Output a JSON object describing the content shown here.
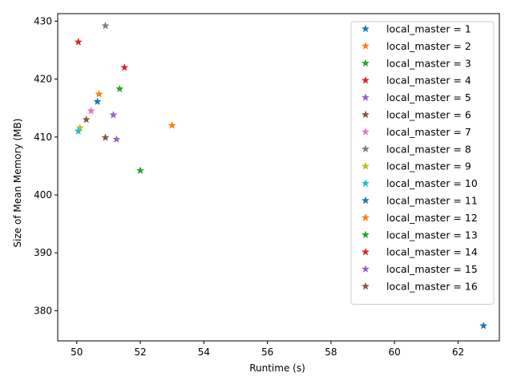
{
  "chart_data": {
    "type": "scatter",
    "title": "",
    "xlabel": "Runtime (s)",
    "ylabel": "Size of Mean Memory (MB)",
    "xlim": [
      49.4,
      63.3
    ],
    "ylim": [
      374.8,
      431.3
    ],
    "xticks": [
      50,
      52,
      54,
      56,
      58,
      60,
      62
    ],
    "yticks": [
      380,
      390,
      400,
      410,
      420,
      430
    ],
    "grid": false,
    "legend_position": "top-right",
    "marker": "star",
    "series": [
      {
        "name": "local_master = 1",
        "color": "#1f77b4",
        "points": [
          {
            "x": 62.8,
            "y": 377.4
          }
        ]
      },
      {
        "name": "local_master = 2",
        "color": "#ff7f0e",
        "points": [
          {
            "x": 53.0,
            "y": 412.0
          }
        ]
      },
      {
        "name": "local_master = 3",
        "color": "#2ca02c",
        "points": [
          {
            "x": 52.0,
            "y": 404.2
          }
        ]
      },
      {
        "name": "local_master = 4",
        "color": "#d62728",
        "points": [
          {
            "x": 51.5,
            "y": 422.0
          }
        ]
      },
      {
        "name": "local_master = 5",
        "color": "#9467bd",
        "points": [
          {
            "x": 51.25,
            "y": 409.6
          }
        ]
      },
      {
        "name": "local_master = 6",
        "color": "#8c564b",
        "points": [
          {
            "x": 50.9,
            "y": 409.9
          }
        ]
      },
      {
        "name": "local_master = 7",
        "color": "#e377c2",
        "points": [
          {
            "x": 50.45,
            "y": 414.5
          }
        ]
      },
      {
        "name": "local_master = 8",
        "color": "#7f7f7f",
        "points": [
          {
            "x": 50.9,
            "y": 429.2
          }
        ]
      },
      {
        "name": "local_master = 9",
        "color": "#bcbd22",
        "points": [
          {
            "x": 50.1,
            "y": 411.6
          }
        ]
      },
      {
        "name": "local_master = 10",
        "color": "#17becf",
        "points": [
          {
            "x": 50.05,
            "y": 411.0
          }
        ]
      },
      {
        "name": "local_master = 11",
        "color": "#1f77b4",
        "points": [
          {
            "x": 50.65,
            "y": 416.1
          }
        ]
      },
      {
        "name": "local_master = 12",
        "color": "#ff7f0e",
        "points": [
          {
            "x": 50.7,
            "y": 417.4
          }
        ]
      },
      {
        "name": "local_master = 13",
        "color": "#2ca02c",
        "points": [
          {
            "x": 51.35,
            "y": 418.3
          }
        ]
      },
      {
        "name": "local_master = 14",
        "color": "#d62728",
        "points": [
          {
            "x": 50.05,
            "y": 426.4
          }
        ]
      },
      {
        "name": "local_master = 15",
        "color": "#9467bd",
        "points": [
          {
            "x": 51.15,
            "y": 413.8
          }
        ]
      },
      {
        "name": "local_master = 16",
        "color": "#8c564b",
        "points": [
          {
            "x": 50.3,
            "y": 413.0
          }
        ]
      }
    ]
  }
}
